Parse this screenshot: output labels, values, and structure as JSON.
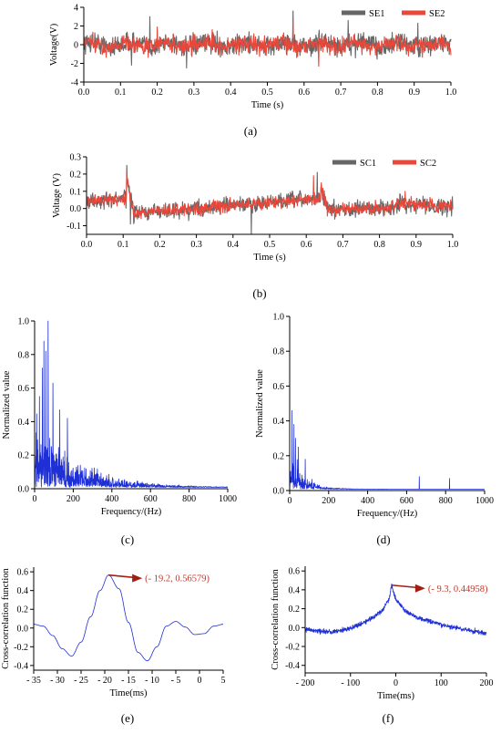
{
  "chart_data": [
    {
      "id": "a",
      "type": "line",
      "caption": "(a)",
      "xlabel": "Time (s)",
      "ylabel": "Voltage(V)",
      "xlim": [
        0,
        1.0
      ],
      "ylim": [
        -4,
        4
      ],
      "xticks": [
        "0.0",
        "0.1",
        "0.2",
        "0.3",
        "0.4",
        "0.5",
        "0.6",
        "0.7",
        "0.8",
        "0.9",
        "1.0"
      ],
      "yticks": [
        "-4",
        "-2",
        "0",
        "2",
        "4"
      ],
      "legend_position": "top-right",
      "series": [
        {
          "name": "SE1",
          "color": "#666666",
          "amplitude": 1.4,
          "peaks": [
            [
              0.18,
              3.0
            ],
            [
              0.57,
              3.6
            ],
            [
              0.28,
              -2.5
            ],
            [
              0.13,
              -2.2
            ],
            [
              0.72,
              2.6
            ],
            [
              0.91,
              2.3
            ]
          ]
        },
        {
          "name": "SE2",
          "color": "#e8473a",
          "amplitude": 1.2,
          "peaks": [
            [
              0.57,
              2.6
            ],
            [
              0.35,
              1.6
            ],
            [
              0.2,
              1.9
            ],
            [
              0.64,
              -2.3
            ]
          ]
        }
      ]
    },
    {
      "id": "b",
      "type": "line",
      "caption": "(b)",
      "xlabel": "Time (s)",
      "ylabel": "Voltage (V)",
      "xlim": [
        0,
        1.0
      ],
      "ylim": [
        -0.15,
        0.3
      ],
      "xticks": [
        "0.0",
        "0.1",
        "0.2",
        "0.3",
        "0.4",
        "0.5",
        "0.6",
        "0.7",
        "0.8",
        "0.9",
        "1.0"
      ],
      "yticks": [
        "-0.1",
        "0.0",
        "0.1",
        "0.2",
        "0.3"
      ],
      "legend_position": "top-right",
      "series": [
        {
          "name": "SC1",
          "color": "#666666",
          "noise": 0.045,
          "peaks": [
            [
              0.11,
              0.25
            ],
            [
              0.63,
              0.21
            ],
            [
              0.45,
              -0.15
            ],
            [
              0.12,
              -0.09
            ]
          ]
        },
        {
          "name": "SC2",
          "color": "#e8473a",
          "noise": 0.035,
          "peaks": [
            [
              0.11,
              0.22
            ],
            [
              0.62,
              0.19
            ],
            [
              0.87,
              0.1
            ]
          ]
        }
      ]
    },
    {
      "id": "c",
      "type": "line",
      "caption": "(c)",
      "xlabel": "Frequency/(Hz)",
      "ylabel": "Normalized value",
      "xlim": [
        0,
        1000
      ],
      "ylim": [
        0,
        1.0
      ],
      "xticks": [
        "0",
        "200",
        "400",
        "600",
        "800",
        "1000"
      ],
      "yticks": [
        "0.0",
        "0.2",
        "0.4",
        "0.6",
        "0.8",
        "1.0"
      ],
      "series": [
        {
          "name": "",
          "color": "#1f2fd6",
          "decay": 210,
          "peaks": [
            [
              70,
              1.0
            ],
            [
              48,
              0.88
            ],
            [
              58,
              0.82
            ],
            [
              95,
              0.63
            ],
            [
              40,
              0.72
            ],
            [
              130,
              0.47
            ],
            [
              170,
              0.42
            ],
            [
              25,
              0.55
            ]
          ]
        }
      ]
    },
    {
      "id": "d",
      "type": "line",
      "caption": "(d)",
      "xlabel": "Frequency/(Hz)",
      "ylabel": "Normalized value",
      "xlim": [
        0,
        1000
      ],
      "ylim": [
        0,
        1.0
      ],
      "xticks": [
        "0",
        "200",
        "400",
        "600",
        "800",
        "1000"
      ],
      "yticks": [
        "0.0",
        "0.2",
        "0.4",
        "0.6",
        "0.8",
        "1.0"
      ],
      "series": [
        {
          "name": "",
          "color": "#1f2fd6",
          "decay": 70,
          "peaks": [
            [
              12,
              0.46
            ],
            [
              22,
              0.38
            ],
            [
              30,
              0.3
            ],
            [
              45,
              0.25
            ],
            [
              80,
              0.18
            ],
            [
              665,
              0.08
            ],
            [
              820,
              0.07
            ]
          ]
        }
      ]
    },
    {
      "id": "e",
      "type": "line",
      "caption": "(e)",
      "xlabel": "Time(ms)",
      "ylabel": "Cross-correlation function",
      "xlim": [
        -35,
        5
      ],
      "ylim": [
        -0.45,
        0.65
      ],
      "xticks": [
        "- 35",
        "- 30",
        "- 25",
        "- 20",
        "- 15",
        "- 10",
        "- 5",
        "0",
        "5"
      ],
      "yticks": [
        "-0.4",
        "-0.2",
        "0.0",
        "0.2",
        "0.4",
        "0.6"
      ],
      "annotation": {
        "text": "(- 19.2, 0.56579)",
        "x": -19.2,
        "y": 0.56579,
        "color": "#c0392b"
      },
      "series": [
        {
          "name": "",
          "color": "#1f2fd6",
          "x": [
            -35,
            -33,
            -31,
            -29,
            -27,
            -25,
            -23,
            -21,
            -19.2,
            -17,
            -15,
            -13,
            -11,
            -9,
            -7,
            -5,
            -3,
            -1,
            1,
            3,
            5
          ],
          "y": [
            0.04,
            0.02,
            -0.08,
            -0.22,
            -0.3,
            -0.15,
            0.12,
            0.4,
            0.56579,
            0.42,
            0.06,
            -0.26,
            -0.35,
            -0.2,
            0.02,
            0.07,
            0.01,
            -0.07,
            -0.06,
            0.02,
            0.04
          ]
        }
      ]
    },
    {
      "id": "f",
      "type": "line",
      "caption": "(f)",
      "xlabel": "Time(ms)",
      "ylabel": "Cross-correlation function",
      "xlim": [
        -200,
        200
      ],
      "ylim": [
        -0.48,
        0.65
      ],
      "xticks": [
        "- 200",
        "- 100",
        "0",
        "100",
        "200"
      ],
      "yticks": [
        "-0.4",
        "-0.2",
        "0.0",
        "0.2",
        "0.4",
        "0.6"
      ],
      "annotation": {
        "text": "(- 9.3, 0.44958)",
        "x": -9.3,
        "y": 0.44958,
        "color": "#c0392b"
      },
      "series": [
        {
          "name": "",
          "color": "#1f2fd6",
          "x": [
            -200,
            -150,
            -100,
            -60,
            -30,
            -15,
            -9.3,
            0,
            20,
            50,
            100,
            150,
            200
          ],
          "y": [
            -0.02,
            -0.05,
            -0.01,
            0.08,
            0.18,
            0.3,
            0.44958,
            0.3,
            0.18,
            0.1,
            0.03,
            -0.02,
            -0.06
          ]
        }
      ]
    }
  ]
}
